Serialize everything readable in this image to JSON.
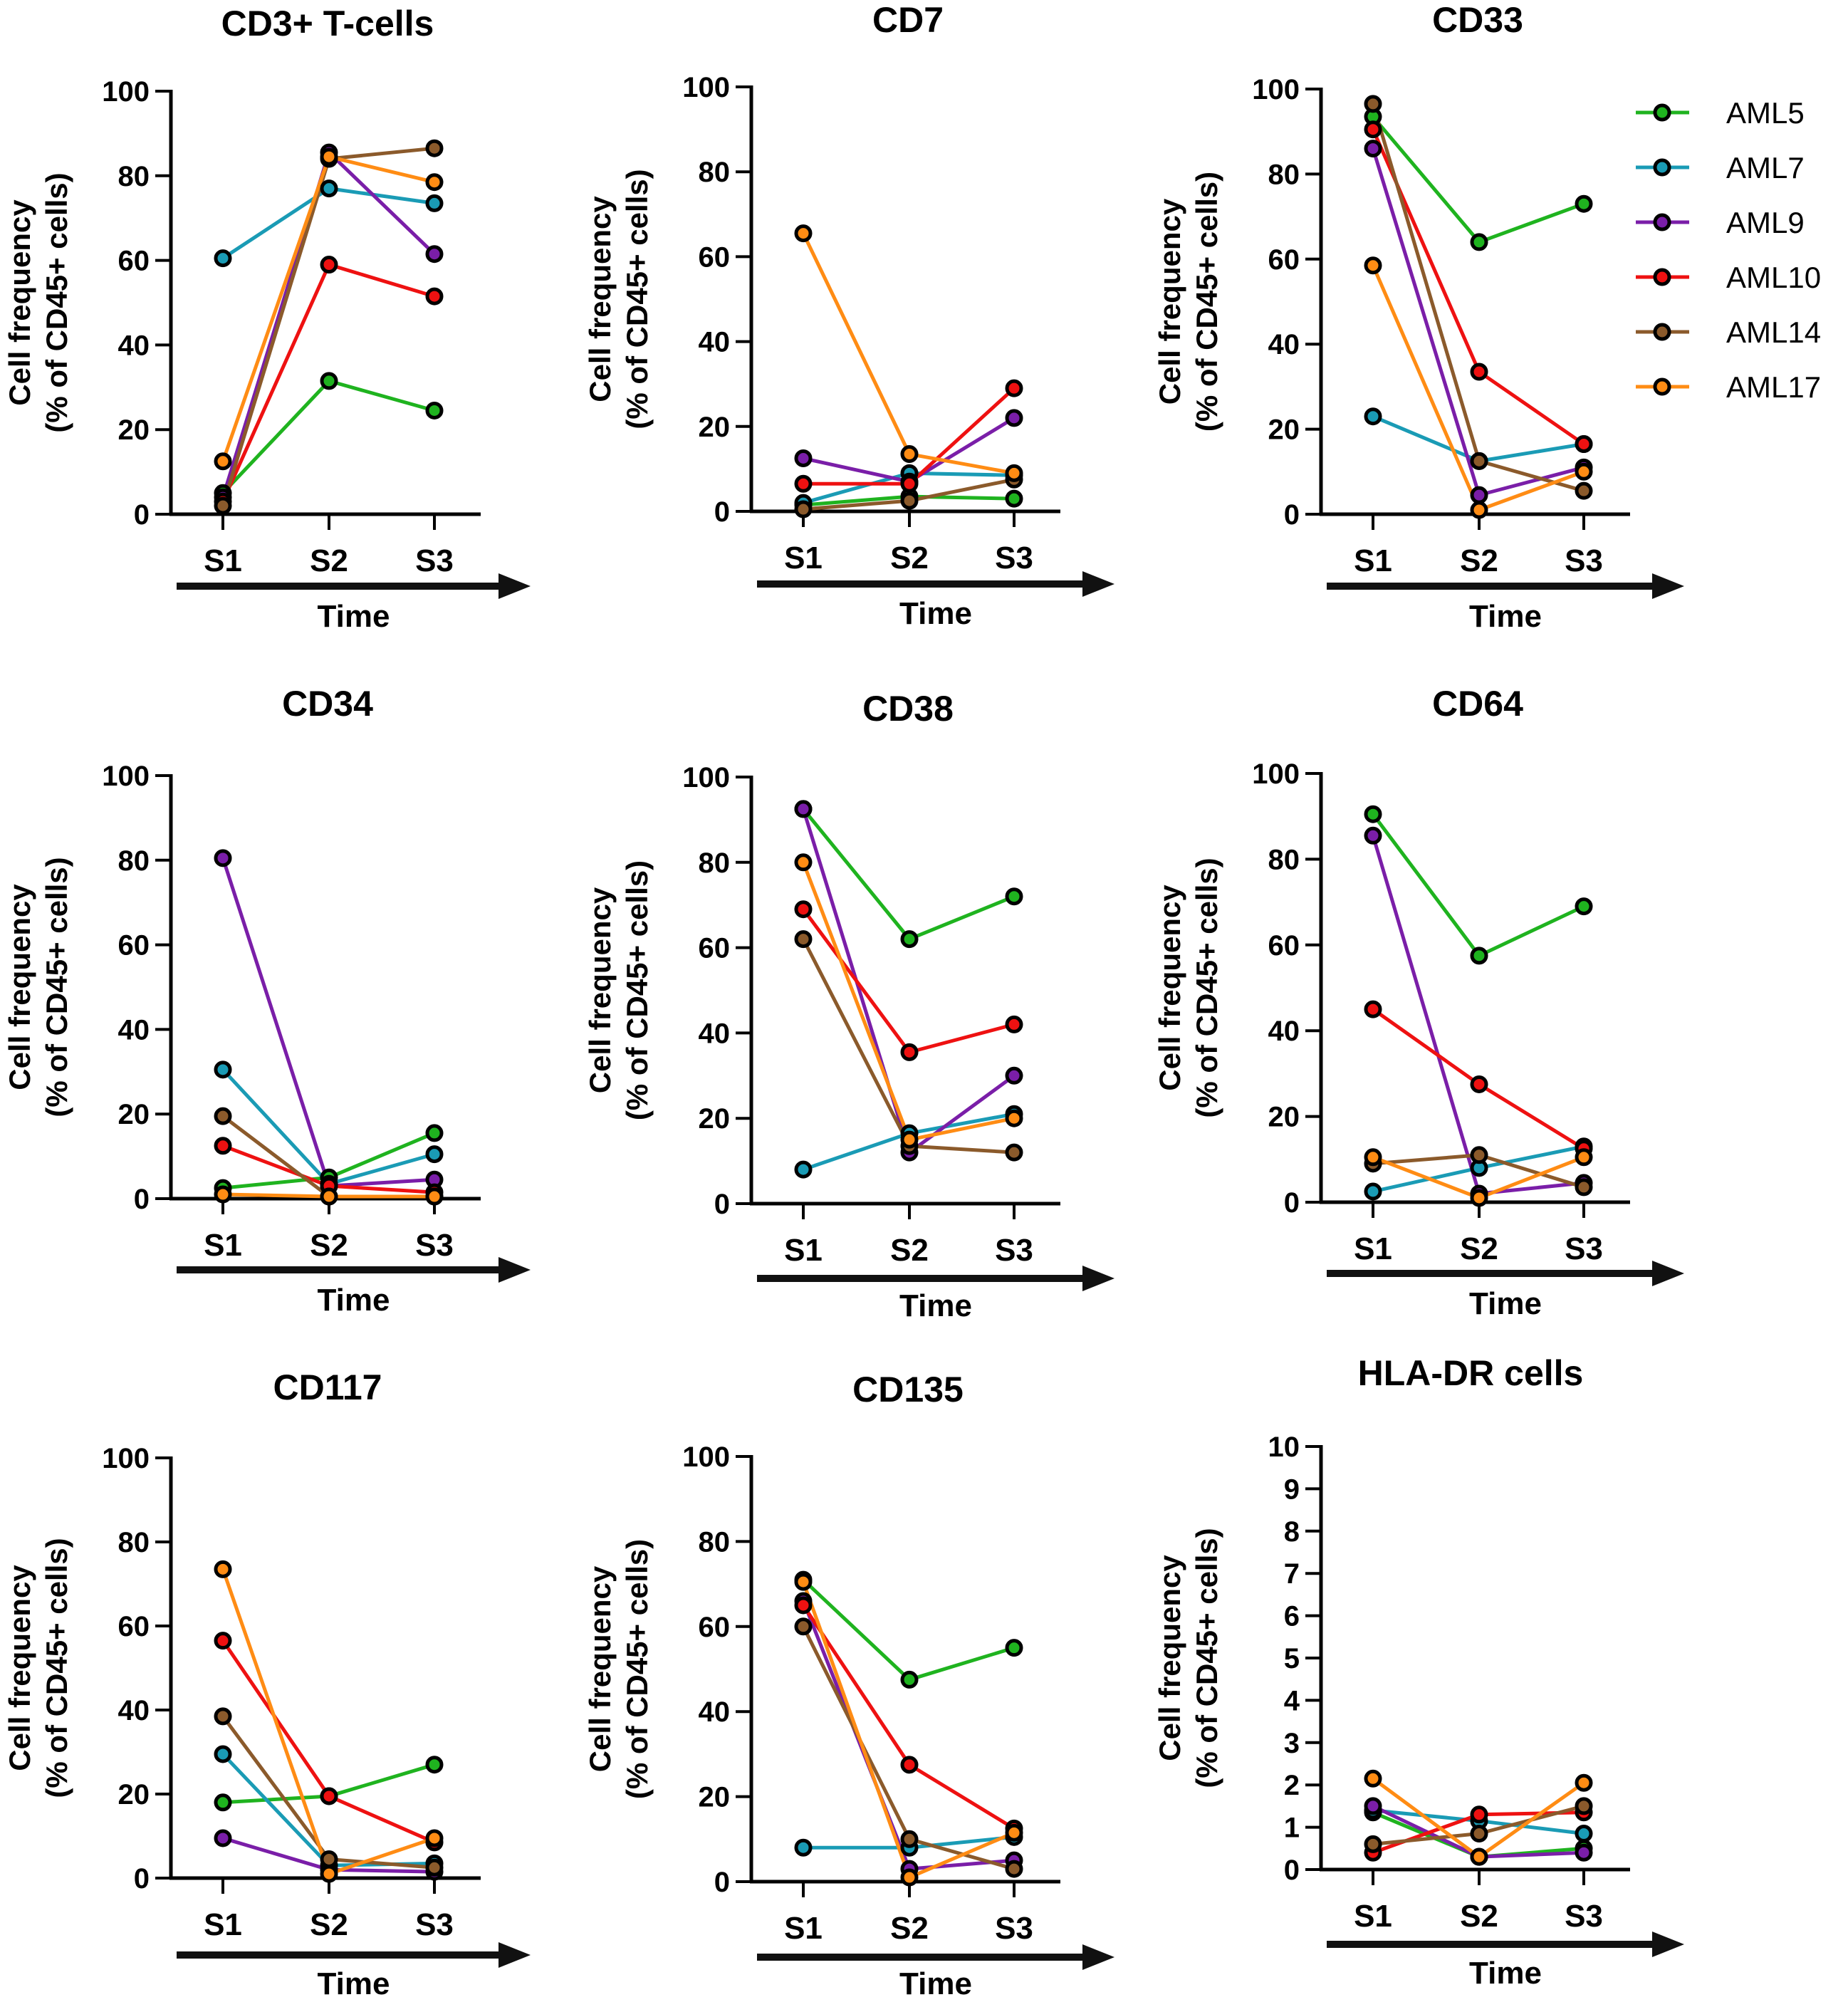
{
  "legend": [
    {
      "name": "AML5",
      "color": "#1fb31f"
    },
    {
      "name": "AML7",
      "color": "#1a9bb5"
    },
    {
      "name": "AML9",
      "color": "#7a1ea8"
    },
    {
      "name": "AML10",
      "color": "#ee1111"
    },
    {
      "name": "AML14",
      "color": "#8b5a2b"
    },
    {
      "name": "AML17",
      "color": "#ff8c14"
    }
  ],
  "chart_data": [
    {
      "type": "line",
      "title": "CD3+ T-cells",
      "ylabel_line1": "Cell frequency",
      "ylabel_line2": "(% of CD45+ cells)",
      "xlabel": "Time",
      "categories": [
        "S1",
        "S2",
        "S3"
      ],
      "ylim": [
        0,
        100
      ],
      "yticks": [
        "0",
        "20",
        "40",
        "60",
        "80",
        "100"
      ],
      "series": [
        {
          "name": "AML5",
          "values": [
            5,
            31.5,
            24.5
          ]
        },
        {
          "name": "AML7",
          "values": [
            60.5,
            77,
            73.5
          ]
        },
        {
          "name": "AML9",
          "values": [
            4,
            85.5,
            61.5
          ]
        },
        {
          "name": "AML10",
          "values": [
            3,
            59,
            51.5
          ]
        },
        {
          "name": "AML14",
          "values": [
            2,
            84,
            86.5
          ]
        },
        {
          "name": "AML17",
          "values": [
            12.5,
            84.5,
            78.5
          ]
        }
      ]
    },
    {
      "type": "line",
      "title": "CD7",
      "ylabel_line1": "Cell frequency",
      "ylabel_line2": "(% of CD45+ cells)",
      "xlabel": "Time",
      "categories": [
        "S1",
        "S2",
        "S3"
      ],
      "ylim": [
        0,
        100
      ],
      "yticks": [
        "0",
        "20",
        "40",
        "60",
        "80",
        "100"
      ],
      "series": [
        {
          "name": "AML5",
          "values": [
            1.5,
            3.5,
            3
          ]
        },
        {
          "name": "AML7",
          "values": [
            2,
            9,
            8.5
          ]
        },
        {
          "name": "AML9",
          "values": [
            12.5,
            7,
            22
          ]
        },
        {
          "name": "AML10",
          "values": [
            6.5,
            6.5,
            29
          ]
        },
        {
          "name": "AML14",
          "values": [
            0.5,
            2.5,
            7.5
          ]
        },
        {
          "name": "AML17",
          "values": [
            65.5,
            13.5,
            9
          ]
        }
      ]
    },
    {
      "type": "line",
      "title": "CD33",
      "ylabel_line1": "Cell frequency",
      "ylabel_line2": "(% of CD45+ cells)",
      "xlabel": "Time",
      "categories": [
        "S1",
        "S2",
        "S3"
      ],
      "ylim": [
        0,
        100
      ],
      "yticks": [
        "0",
        "20",
        "40",
        "60",
        "80",
        "100"
      ],
      "series": [
        {
          "name": "AML5",
          "values": [
            93.5,
            64,
            73
          ]
        },
        {
          "name": "AML7",
          "values": [
            23,
            12.5,
            16.5
          ]
        },
        {
          "name": "AML9",
          "values": [
            86,
            4.5,
            11
          ]
        },
        {
          "name": "AML10",
          "values": [
            90.5,
            33.5,
            16.5
          ]
        },
        {
          "name": "AML14",
          "values": [
            96.5,
            12.5,
            5.5
          ]
        },
        {
          "name": "AML17",
          "values": [
            58.5,
            1,
            10
          ]
        }
      ]
    },
    {
      "type": "line",
      "title": "CD34",
      "ylabel_line1": "Cell frequency",
      "ylabel_line2": "(% of CD45+ cells)",
      "xlabel": "Time",
      "categories": [
        "S1",
        "S2",
        "S3"
      ],
      "ylim": [
        0,
        100
      ],
      "yticks": [
        "0",
        "20",
        "40",
        "60",
        "80",
        "100"
      ],
      "series": [
        {
          "name": "AML5",
          "values": [
            2.5,
            5,
            15.5
          ]
        },
        {
          "name": "AML7",
          "values": [
            30.5,
            3.5,
            10.5
          ]
        },
        {
          "name": "AML9",
          "values": [
            80.5,
            3,
            4.5
          ]
        },
        {
          "name": "AML10",
          "values": [
            12.5,
            3,
            1.5
          ]
        },
        {
          "name": "AML14",
          "values": [
            19.5,
            0.5,
            0.5
          ]
        },
        {
          "name": "AML17",
          "values": [
            1,
            0.5,
            0.5
          ]
        }
      ]
    },
    {
      "type": "line",
      "title": "CD38",
      "ylabel_line1": "Cell frequency",
      "ylabel_line2": "(% of CD45+ cells)",
      "xlabel": "Time",
      "categories": [
        "S1",
        "S2",
        "S3"
      ],
      "ylim": [
        0,
        100
      ],
      "yticks": [
        "0",
        "20",
        "40",
        "60",
        "80",
        "100"
      ],
      "series": [
        {
          "name": "AML5",
          "values": [
            92.5,
            62,
            72
          ]
        },
        {
          "name": "AML7",
          "values": [
            8,
            16.5,
            21
          ]
        },
        {
          "name": "AML9",
          "values": [
            92.5,
            12,
            30
          ]
        },
        {
          "name": "AML10",
          "values": [
            69,
            35.5,
            42
          ]
        },
        {
          "name": "AML14",
          "values": [
            62,
            13.5,
            12
          ]
        },
        {
          "name": "AML17",
          "values": [
            80,
            15,
            20
          ]
        }
      ]
    },
    {
      "type": "line",
      "title": "CD64",
      "ylabel_line1": "Cell frequency",
      "ylabel_line2": "(% of CD45+ cells)",
      "xlabel": "Time",
      "categories": [
        "S1",
        "S2",
        "S3"
      ],
      "ylim": [
        0,
        100
      ],
      "yticks": [
        "0",
        "20",
        "40",
        "60",
        "80",
        "100"
      ],
      "series": [
        {
          "name": "AML5",
          "values": [
            90.5,
            57.5,
            69
          ]
        },
        {
          "name": "AML7",
          "values": [
            2.5,
            8,
            13
          ]
        },
        {
          "name": "AML9",
          "values": [
            85.5,
            2,
            4.5
          ]
        },
        {
          "name": "AML10",
          "values": [
            45,
            27.5,
            12.5
          ]
        },
        {
          "name": "AML14",
          "values": [
            9,
            11,
            3.5
          ]
        },
        {
          "name": "AML17",
          "values": [
            10.5,
            1,
            10.5
          ]
        }
      ]
    },
    {
      "type": "line",
      "title": "CD117",
      "ylabel_line1": "Cell frequency",
      "ylabel_line2": "(% of CD45+ cells)",
      "xlabel": "Time",
      "categories": [
        "S1",
        "S2",
        "S3"
      ],
      "ylim": [
        0,
        100
      ],
      "yticks": [
        "0",
        "20",
        "40",
        "60",
        "80",
        "100"
      ],
      "series": [
        {
          "name": "AML5",
          "values": [
            18,
            19.5,
            27
          ]
        },
        {
          "name": "AML7",
          "values": [
            29.5,
            3,
            3.5
          ]
        },
        {
          "name": "AML9",
          "values": [
            9.5,
            2,
            1.5
          ]
        },
        {
          "name": "AML10",
          "values": [
            56.5,
            19.5,
            8.5
          ]
        },
        {
          "name": "AML14",
          "values": [
            38.5,
            4.5,
            2.5
          ]
        },
        {
          "name": "AML17",
          "values": [
            73.5,
            1,
            9.5
          ]
        }
      ]
    },
    {
      "type": "line",
      "title": "CD135",
      "ylabel_line1": "Cell frequency",
      "ylabel_line2": "(% of CD45+ cells)",
      "xlabel": "Time",
      "categories": [
        "S1",
        "S2",
        "S3"
      ],
      "ylim": [
        0,
        100
      ],
      "yticks": [
        "0",
        "20",
        "40",
        "60",
        "80",
        "100"
      ],
      "series": [
        {
          "name": "AML5",
          "values": [
            71,
            47.5,
            55
          ]
        },
        {
          "name": "AML7",
          "values": [
            8,
            8,
            10.5
          ]
        },
        {
          "name": "AML9",
          "values": [
            66,
            3,
            5
          ]
        },
        {
          "name": "AML10",
          "values": [
            65,
            27.5,
            12.5
          ]
        },
        {
          "name": "AML14",
          "values": [
            60,
            10,
            3
          ]
        },
        {
          "name": "AML17",
          "values": [
            70.5,
            1,
            11.5
          ]
        }
      ]
    },
    {
      "type": "line",
      "title": "HLA-DR cells",
      "ylabel_line1": "Cell frequency",
      "ylabel_line2": "(% of CD45+ cells)",
      "xlabel": "Time",
      "categories": [
        "S1",
        "S2",
        "S3"
      ],
      "ylim": [
        0,
        10
      ],
      "yticks": [
        "0",
        "1",
        "2",
        "3",
        "4",
        "5",
        "6",
        "7",
        "8",
        "9",
        "10"
      ],
      "series": [
        {
          "name": "AML5",
          "values": [
            1.35,
            0.3,
            0.5
          ]
        },
        {
          "name": "AML7",
          "values": [
            1.4,
            1.15,
            0.85
          ]
        },
        {
          "name": "AML9",
          "values": [
            1.5,
            0.3,
            0.4
          ]
        },
        {
          "name": "AML10",
          "values": [
            0.4,
            1.3,
            1.35
          ]
        },
        {
          "name": "AML14",
          "values": [
            0.6,
            0.85,
            1.5
          ]
        },
        {
          "name": "AML17",
          "values": [
            2.15,
            0.3,
            2.05
          ]
        }
      ]
    }
  ]
}
